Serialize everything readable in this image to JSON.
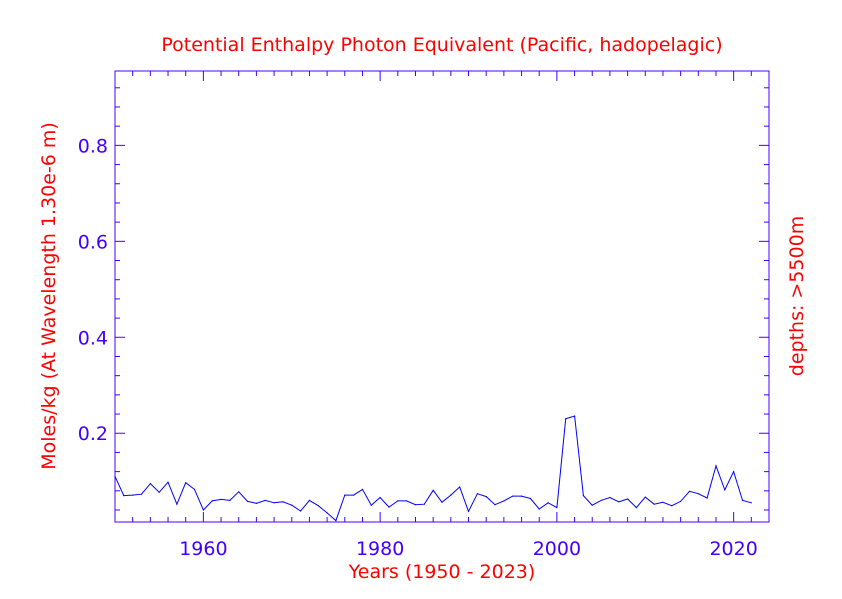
{
  "colors": {
    "title": "#ff0000",
    "axis_labels": "#ff0000",
    "axes": "#4400ff",
    "tick_labels": "#4400ff",
    "series": "#0000ff"
  },
  "chart_data": {
    "type": "line",
    "title": "Potential Enthalpy Photon Equivalent (Pacific, hadopelagic)",
    "xlabel": "Years (1950 - 2023)",
    "ylabel": "Moles/kg (At Wavelength 1.30e-6 m)",
    "right_label": "depths: >5500m",
    "xlim": [
      1950,
      2024
    ],
    "ylim": [
      0.015,
      0.955
    ],
    "grid": false,
    "x_ticks": [
      1960,
      1980,
      2000,
      2020
    ],
    "y_ticks": [
      0.2,
      0.4,
      0.6,
      0.8
    ],
    "x_tick_labels": [
      "1960",
      "1980",
      "2000",
      "2020"
    ],
    "y_tick_labels": [
      "0.2",
      "0.4",
      "0.6",
      "0.8"
    ],
    "series": [
      {
        "x": [
          1950,
          1951,
          1952,
          1953,
          1954,
          1955,
          1956,
          1957,
          1958,
          1959,
          1960,
          1961,
          1962,
          1963,
          1964,
          1965,
          1966,
          1967,
          1968,
          1969,
          1970,
          1971,
          1972,
          1973,
          1974,
          1975,
          1976,
          1977,
          1978,
          1979,
          1980,
          1981,
          1982,
          1983,
          1984,
          1985,
          1986,
          1987,
          1988,
          1989,
          1990,
          1991,
          1992,
          1993,
          1994,
          1995,
          1996,
          1997,
          1998,
          1999,
          2000,
          2001,
          2002,
          2003,
          2004,
          2005,
          2006,
          2007,
          2008,
          2009,
          2010,
          2011,
          2012,
          2013,
          2014,
          2015,
          2016,
          2017,
          2018,
          2019,
          2020,
          2021,
          2022
        ],
        "y": [
          0.11,
          0.07,
          0.071,
          0.073,
          0.095,
          0.077,
          0.098,
          0.052,
          0.097,
          0.083,
          0.04,
          0.059,
          0.062,
          0.06,
          0.078,
          0.058,
          0.054,
          0.06,
          0.055,
          0.057,
          0.05,
          0.038,
          0.06,
          0.049,
          0.034,
          0.018,
          0.071,
          0.071,
          0.083,
          0.05,
          0.066,
          0.046,
          0.059,
          0.059,
          0.051,
          0.052,
          0.081,
          0.056,
          0.071,
          0.088,
          0.037,
          0.074,
          0.068,
          0.051,
          0.059,
          0.069,
          0.069,
          0.064,
          0.042,
          0.055,
          0.045,
          0.23,
          0.236,
          0.07,
          0.05,
          0.06,
          0.066,
          0.057,
          0.063,
          0.045,
          0.067,
          0.052,
          0.056,
          0.049,
          0.058,
          0.079,
          0.074,
          0.065,
          0.132,
          0.082,
          0.12,
          0.06,
          0.055
        ]
      }
    ]
  }
}
